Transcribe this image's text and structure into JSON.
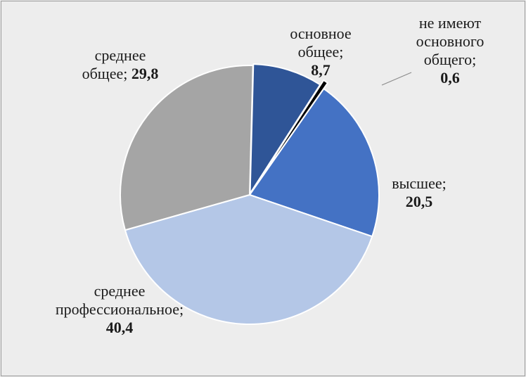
{
  "chart_data": {
    "type": "pie",
    "title": "",
    "start_angle_deg": 0,
    "direction": "clockwise",
    "slices": [
      {
        "label": "высшее;",
        "value": 20.5,
        "display": "20,5",
        "color": "#4472c4"
      },
      {
        "label": "среднее профессиональное;",
        "value": 40.4,
        "display": "40,4",
        "color": "#b4c7e7"
      },
      {
        "label": "среднее общее;",
        "value": 29.8,
        "display": "29,8",
        "color": "#a5a5a5"
      },
      {
        "label": "основное общее;",
        "value": 8.7,
        "display": "8,7",
        "color": "#2f5597"
      },
      {
        "label": "не имеют основного общего;",
        "value": 0.6,
        "display": "0,6",
        "color": "#000000"
      }
    ]
  },
  "labels": {
    "vysshee": {
      "line1": "высшее;",
      "value": "20,5"
    },
    "sredprof": {
      "line1": "среднее",
      "line2": "профессиональное;",
      "value": "40,4"
    },
    "srednee": {
      "line1": "среднее",
      "line2": "общее;",
      "value": "29,8"
    },
    "osnovnoe": {
      "line1": "основное",
      "line2": "общее;",
      "value": "8,7"
    },
    "ne_imeyut": {
      "line1": "не имеют",
      "line2": "основного",
      "line3": "общего;",
      "value": "0,6"
    }
  }
}
